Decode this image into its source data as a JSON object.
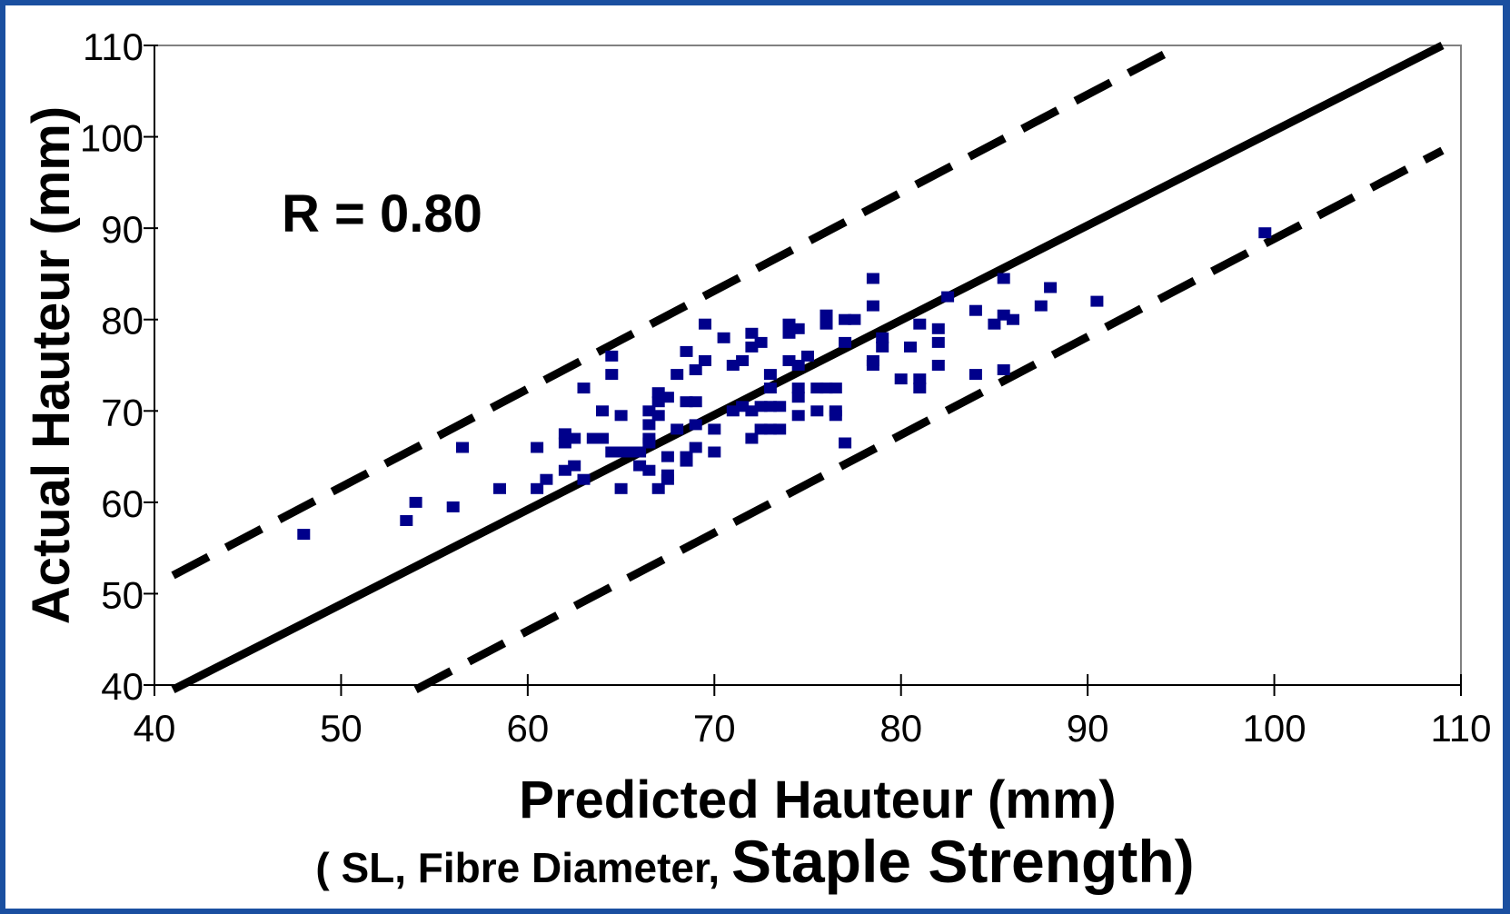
{
  "chart_data": {
    "type": "scatter",
    "xlabel": "Predicted Hauteur (mm)",
    "ylabel": "Actual Hauteur (mm)",
    "annotation": "R = 0.80",
    "subtitle": {
      "open": "( SL, Fibre Diameter, ",
      "emphasis": "Staple Strength",
      "close": ")"
    },
    "xlim": [
      40,
      110
    ],
    "ylim": [
      40,
      110
    ],
    "xticks": [
      40,
      50,
      60,
      70,
      80,
      90,
      100,
      110
    ],
    "yticks": [
      40,
      50,
      60,
      70,
      80,
      90,
      100,
      110
    ],
    "grid": false,
    "marker_color": "#00008b",
    "lines": [
      {
        "style": "solid",
        "x": [
          41,
          109
        ],
        "y": [
          39.5,
          110
        ]
      },
      {
        "style": "dashed",
        "x": [
          41,
          95
        ],
        "y": [
          52,
          110
        ]
      },
      {
        "style": "dashed",
        "x": [
          54,
          109
        ],
        "y": [
          39.5,
          98.5
        ]
      }
    ],
    "points": [
      [
        48,
        56.5
      ],
      [
        53.5,
        58
      ],
      [
        54,
        60
      ],
      [
        56,
        59.5
      ],
      [
        56.5,
        66
      ],
      [
        58.5,
        61.5
      ],
      [
        60.5,
        61.5
      ],
      [
        60.5,
        66
      ],
      [
        61,
        62.5
      ],
      [
        62,
        66.5
      ],
      [
        62,
        67.5
      ],
      [
        62,
        63.5
      ],
      [
        62.5,
        64
      ],
      [
        62.5,
        67
      ],
      [
        63,
        62.5
      ],
      [
        63,
        72.5
      ],
      [
        63.5,
        67
      ],
      [
        64,
        70
      ],
      [
        64,
        67
      ],
      [
        64.5,
        76
      ],
      [
        64.5,
        74
      ],
      [
        64.5,
        65.5
      ],
      [
        65,
        61.5
      ],
      [
        65,
        65.5
      ],
      [
        65,
        69.5
      ],
      [
        65.5,
        65.5
      ],
      [
        66,
        64
      ],
      [
        66,
        65.5
      ],
      [
        66.5,
        63.5
      ],
      [
        66.5,
        66.5
      ],
      [
        66.5,
        67
      ],
      [
        66.5,
        68.5
      ],
      [
        66.5,
        70
      ],
      [
        67,
        71
      ],
      [
        67,
        72
      ],
      [
        67,
        69.5
      ],
      [
        67,
        61.5
      ],
      [
        67.5,
        62.5
      ],
      [
        67.5,
        63
      ],
      [
        67.5,
        65
      ],
      [
        67.5,
        71.5
      ],
      [
        68,
        68
      ],
      [
        68,
        74
      ],
      [
        68.5,
        76.5
      ],
      [
        68.5,
        71
      ],
      [
        68.5,
        65
      ],
      [
        68.5,
        64.5
      ],
      [
        69,
        71
      ],
      [
        69,
        68.5
      ],
      [
        69,
        74.5
      ],
      [
        69,
        66
      ],
      [
        69.5,
        75.5
      ],
      [
        69.5,
        79.5
      ],
      [
        70,
        68
      ],
      [
        70,
        65.5
      ],
      [
        70.5,
        78
      ],
      [
        71,
        75
      ],
      [
        71,
        70
      ],
      [
        71.5,
        75.5
      ],
      [
        71.5,
        70.5
      ],
      [
        72,
        78.5
      ],
      [
        72,
        77
      ],
      [
        72,
        70
      ],
      [
        72,
        67
      ],
      [
        72.5,
        77.5
      ],
      [
        72.5,
        70.5
      ],
      [
        72.5,
        68
      ],
      [
        73,
        74
      ],
      [
        73,
        72.5
      ],
      [
        73,
        70.5
      ],
      [
        73,
        68
      ],
      [
        73.5,
        70.5
      ],
      [
        73.5,
        68
      ],
      [
        74,
        79.5
      ],
      [
        74,
        78.5
      ],
      [
        74,
        75.5
      ],
      [
        74.5,
        79
      ],
      [
        74.5,
        75
      ],
      [
        74.5,
        72.5
      ],
      [
        74.5,
        71.5
      ],
      [
        74.5,
        69.5
      ],
      [
        75,
        76
      ],
      [
        75.5,
        72.5
      ],
      [
        75.5,
        70
      ],
      [
        76,
        80.5
      ],
      [
        76,
        79.5
      ],
      [
        76,
        72.5
      ],
      [
        76.5,
        72.5
      ],
      [
        76.5,
        70
      ],
      [
        76.5,
        69.5
      ],
      [
        77,
        80
      ],
      [
        77,
        77.5
      ],
      [
        77,
        66.5
      ],
      [
        77.5,
        80
      ],
      [
        78.5,
        84.5
      ],
      [
        78.5,
        81.5
      ],
      [
        78.5,
        75.5
      ],
      [
        78.5,
        75
      ],
      [
        79,
        77
      ],
      [
        79,
        78
      ],
      [
        80,
        73.5
      ],
      [
        80.5,
        77
      ],
      [
        81,
        79.5
      ],
      [
        81,
        73.5
      ],
      [
        81,
        72.5
      ],
      [
        82,
        79
      ],
      [
        82,
        77.5
      ],
      [
        82,
        75
      ],
      [
        82.5,
        82.5
      ],
      [
        84,
        81
      ],
      [
        84,
        74
      ],
      [
        85,
        79.5
      ],
      [
        85.5,
        80.5
      ],
      [
        85.5,
        74.5
      ],
      [
        85.5,
        84.5
      ],
      [
        86,
        80
      ],
      [
        87.5,
        81.5
      ],
      [
        88,
        83.5
      ],
      [
        90.5,
        82
      ],
      [
        99.5,
        89.5
      ]
    ]
  }
}
